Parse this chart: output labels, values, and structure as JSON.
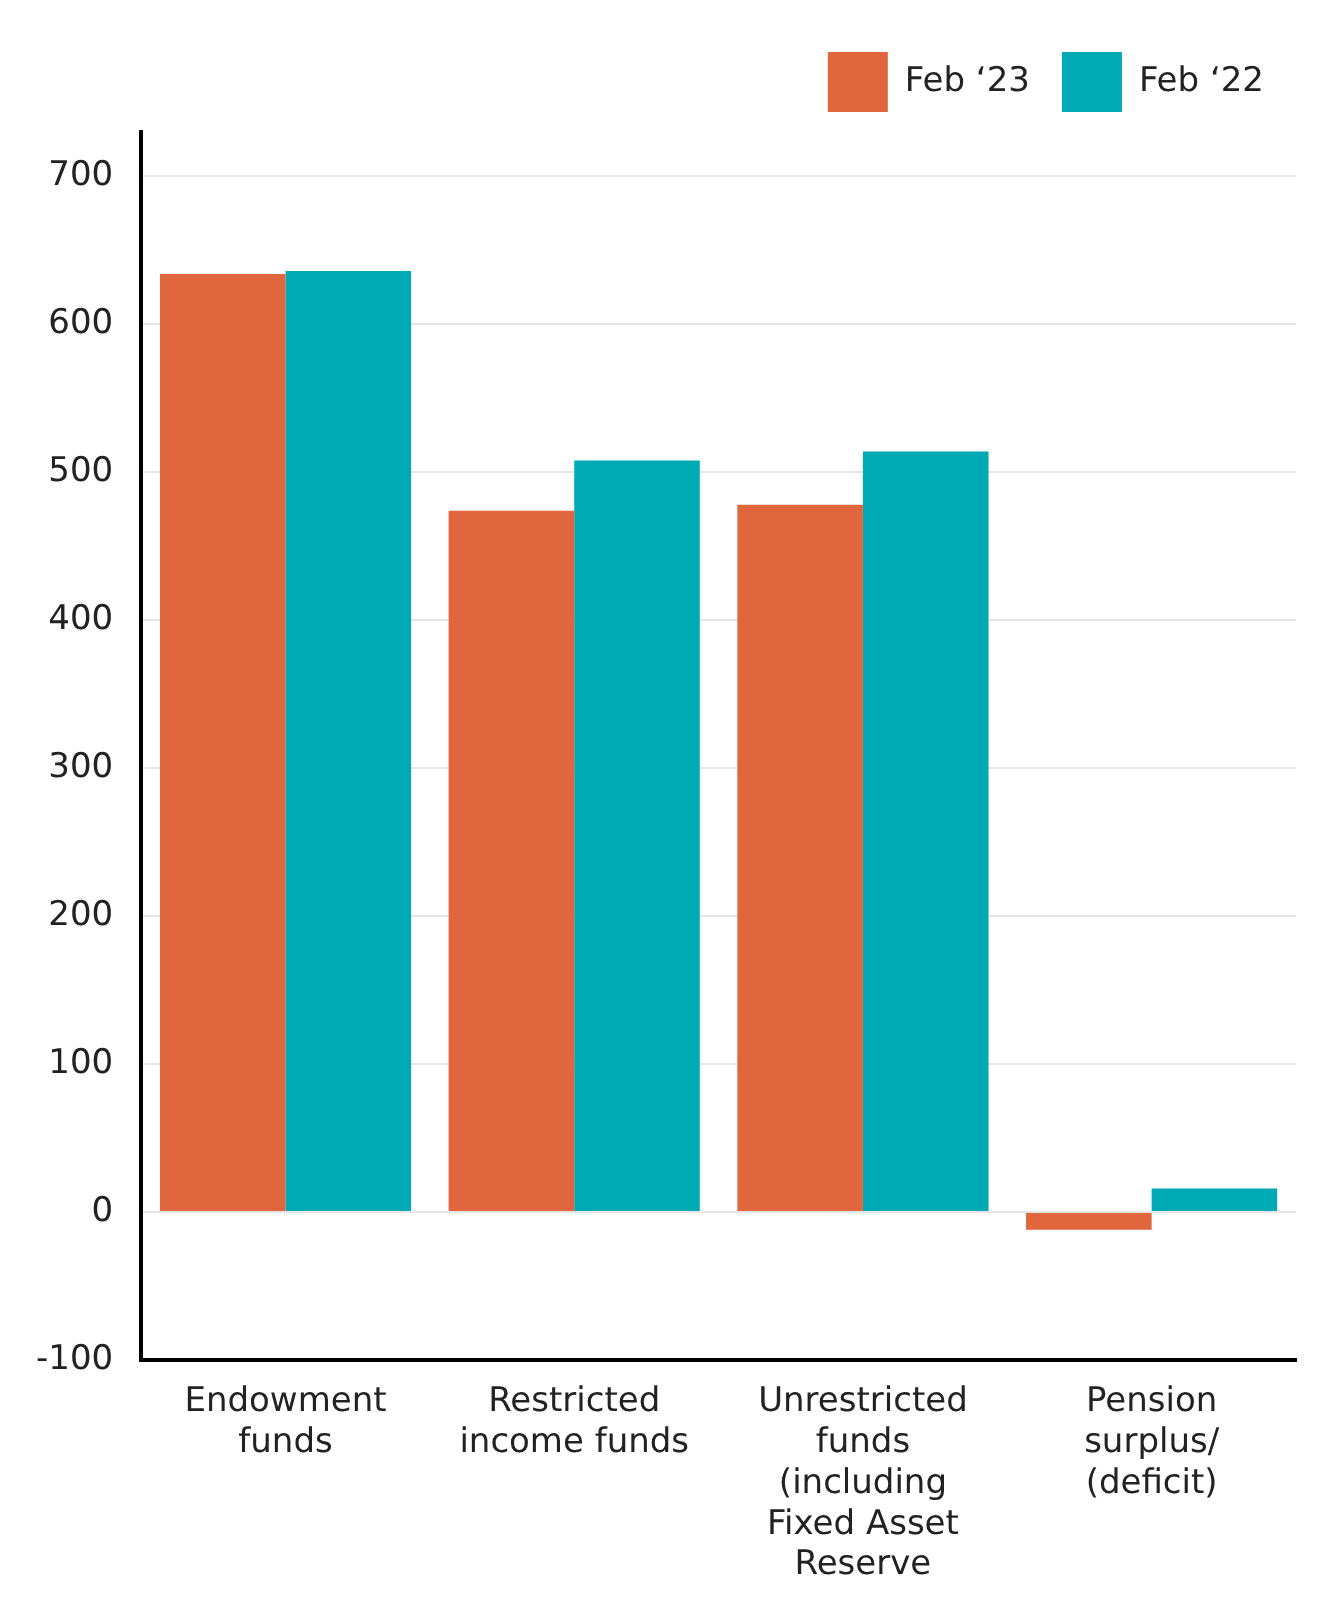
{
  "chart_data": {
    "type": "bar",
    "categories": [
      "Endowment funds",
      "Restricted income funds",
      "Unrestricted funds (including Fixed Asset Reserve",
      "Pension surplus/ (deficit)"
    ],
    "series": [
      {
        "name": "Feb ‘23",
        "color": "#e0673d",
        "values": [
          634,
          474,
          478,
          -12
        ]
      },
      {
        "name": "Feb ‘22",
        "color": "#00aab5",
        "values": [
          636,
          508,
          514,
          16
        ]
      }
    ],
    "ylim": [
      -100,
      730
    ],
    "yticks": [
      -100,
      0,
      100,
      200,
      300,
      400,
      500,
      600,
      700
    ],
    "grid": "y",
    "legend": "top right"
  }
}
